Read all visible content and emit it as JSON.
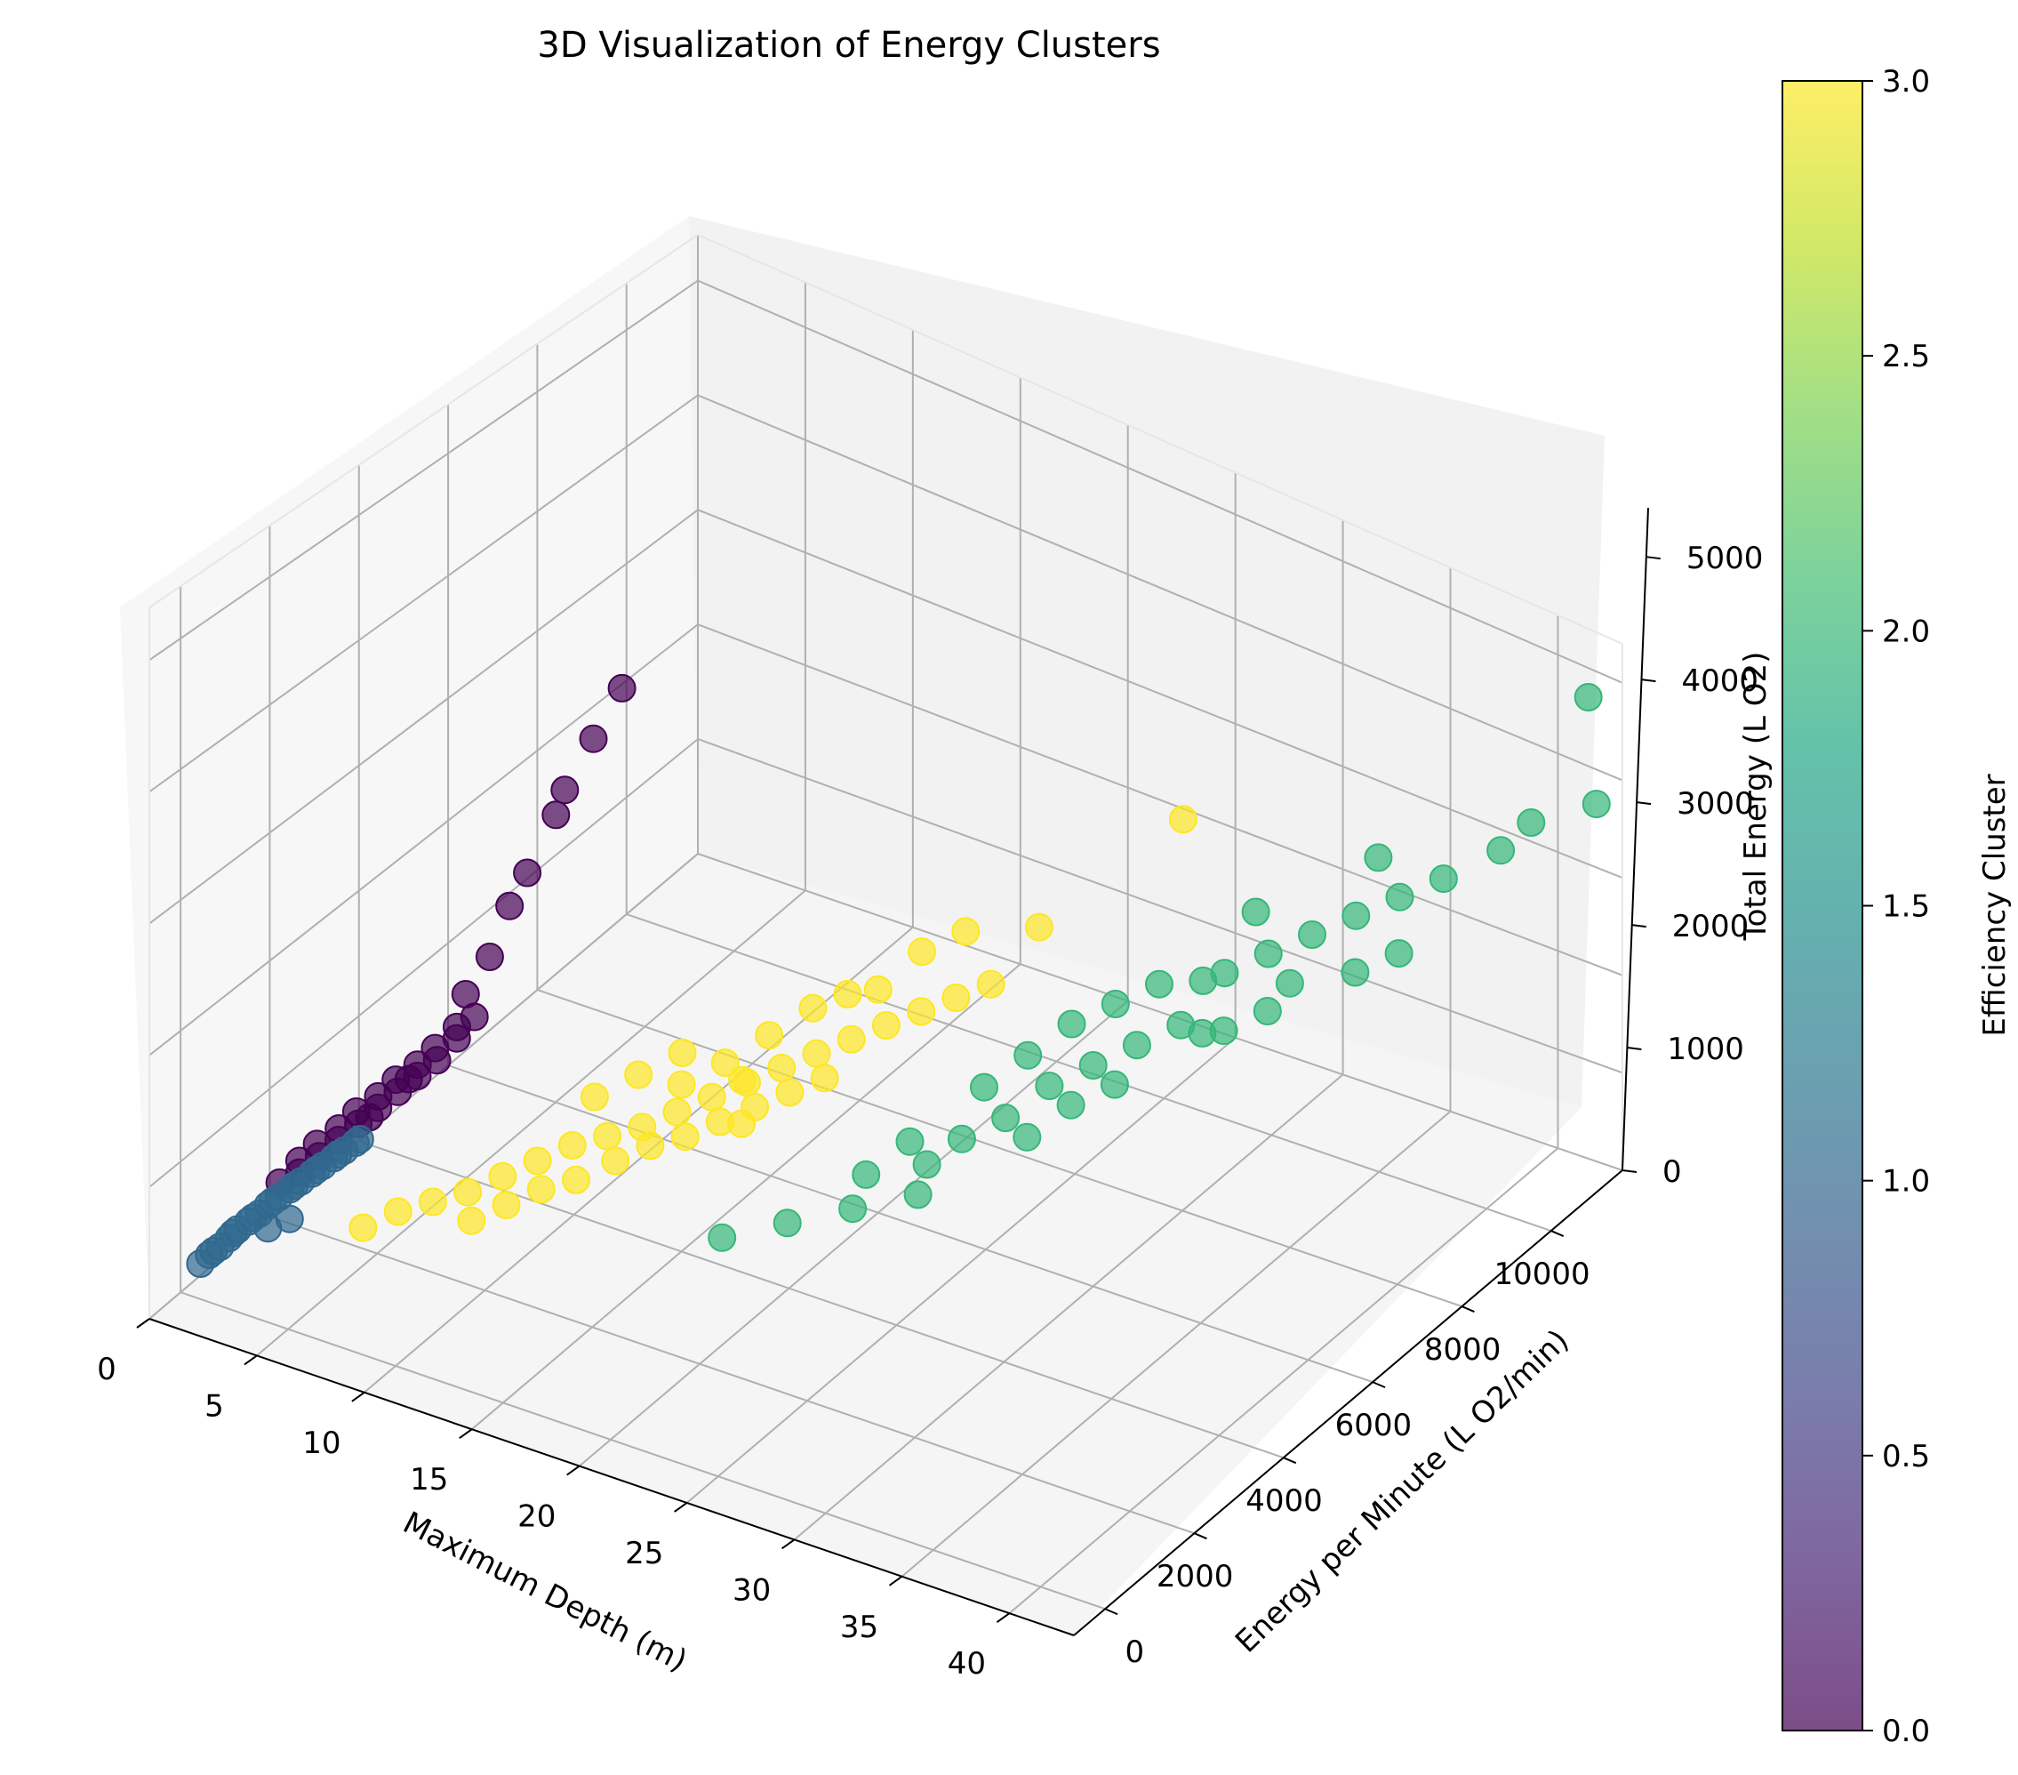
{
  "chart_data": {
    "type": "scatter",
    "title": "3D Visualization of Energy Clusters",
    "xlabel": "Maximum Depth (m)",
    "ylabel": "Energy per Minute (L O2/min)",
    "zlabel": "Total Energy (L O2)",
    "x_ticks": [
      "0",
      "5",
      "10",
      "15",
      "20",
      "25",
      "30",
      "35",
      "40"
    ],
    "y_ticks": [
      "0",
      "2000",
      "4000",
      "6000",
      "8000",
      "10000"
    ],
    "z_ticks": [
      "0",
      "1000",
      "2000",
      "3000",
      "4000",
      "5000"
    ],
    "xlim": [
      0,
      43
    ],
    "ylim": [
      -700,
      11600
    ],
    "zlim": [
      0,
      5400
    ],
    "grid": true,
    "colormap": "viridis",
    "colorbar": {
      "label": "Efficiency Cluster",
      "ticks": [
        "0.0",
        "0.5",
        "1.0",
        "1.5",
        "2.0",
        "2.5",
        "3.0"
      ],
      "range": [
        0,
        3
      ]
    },
    "clusters": [
      {
        "cluster": 0,
        "color": "#440154",
        "points": [
          [
            1.5,
            1500,
            500
          ],
          [
            2,
            1700,
            550
          ],
          [
            2.5,
            1900,
            650
          ],
          [
            3,
            2100,
            750
          ],
          [
            3.5,
            2300,
            850
          ],
          [
            4,
            2500,
            950
          ],
          [
            4.5,
            2700,
            1050
          ],
          [
            5,
            2900,
            1150
          ],
          [
            5.5,
            3100,
            1250
          ],
          [
            6,
            3300,
            1400
          ],
          [
            1.8,
            1800,
            600
          ],
          [
            2.8,
            2200,
            800
          ],
          [
            3.8,
            2600,
            1000
          ],
          [
            4.8,
            3000,
            1200
          ],
          [
            2.2,
            2000,
            700
          ],
          [
            3.2,
            2400,
            900
          ],
          [
            4.2,
            2800,
            1100
          ],
          [
            5.2,
            3200,
            1300
          ],
          [
            6,
            3500,
            1700
          ],
          [
            6.5,
            3800,
            1950
          ],
          [
            6.8,
            4100,
            2300
          ],
          [
            7,
            4400,
            2500
          ],
          [
            7.5,
            4800,
            2900
          ],
          [
            7.5,
            5000,
            3050
          ],
          [
            8,
            5400,
            3400
          ],
          [
            8.5,
            5800,
            3750
          ],
          [
            6.2,
            3600,
            1500
          ],
          [
            5.8,
            3400,
            1450
          ],
          [
            4.6,
            2900,
            1100
          ],
          [
            3.6,
            2500,
            850
          ]
        ]
      },
      {
        "cluster": 1,
        "color": "#31688e",
        "points": [
          [
            0.3,
            300,
            150
          ],
          [
            0.5,
            400,
            200
          ],
          [
            0.8,
            500,
            250
          ],
          [
            1,
            600,
            300
          ],
          [
            1.2,
            700,
            350
          ],
          [
            1.5,
            800,
            400
          ],
          [
            1.8,
            900,
            450
          ],
          [
            2,
            1000,
            500
          ],
          [
            2.3,
            1100,
            550
          ],
          [
            2.6,
            1200,
            600
          ],
          [
            2.9,
            1300,
            650
          ],
          [
            3.2,
            1400,
            700
          ],
          [
            3.5,
            1500,
            750
          ],
          [
            3.8,
            1600,
            800
          ],
          [
            4.1,
            1700,
            850
          ],
          [
            4.4,
            1800,
            900
          ],
          [
            0.6,
            450,
            220
          ],
          [
            1.1,
            650,
            330
          ],
          [
            1.6,
            850,
            420
          ],
          [
            2.1,
            1050,
            520
          ],
          [
            2.7,
            1250,
            620
          ],
          [
            3.3,
            1450,
            720
          ],
          [
            3.9,
            1650,
            820
          ],
          [
            4.5,
            1850,
            920
          ],
          [
            2.4,
            800,
            400
          ],
          [
            3,
            1000,
            450
          ]
        ]
      },
      {
        "cluster": 2,
        "color": "#35b779",
        "points": [
          [
            20,
            2500,
            900
          ],
          [
            22,
            3000,
            1000
          ],
          [
            24,
            3500,
            1100
          ],
          [
            26,
            4000,
            1200
          ],
          [
            26,
            4200,
            1400
          ],
          [
            27,
            4500,
            1600
          ],
          [
            28,
            5000,
            1700
          ],
          [
            29,
            5500,
            1900
          ],
          [
            30,
            6000,
            2000
          ],
          [
            31,
            6500,
            2100
          ],
          [
            32,
            7000,
            2200
          ],
          [
            30,
            6500,
            2400
          ],
          [
            31,
            7000,
            2500
          ],
          [
            33,
            7500,
            2600
          ],
          [
            34,
            8000,
            2700
          ],
          [
            35,
            8500,
            2800
          ],
          [
            36,
            9000,
            2900
          ],
          [
            37,
            9500,
            3000
          ],
          [
            38,
            10000,
            3100
          ],
          [
            39,
            10800,
            3200
          ],
          [
            33,
            8200,
            2950
          ],
          [
            32,
            7500,
            2450
          ],
          [
            29,
            6000,
            2300
          ],
          [
            28,
            5500,
            2100
          ],
          [
            27,
            5000,
            1900
          ],
          [
            25,
            4300,
            1500
          ],
          [
            36,
            9500,
            3300
          ],
          [
            35,
            8000,
            2500
          ],
          [
            34,
            7000,
            2300
          ],
          [
            38,
            9000,
            2700
          ],
          [
            40,
            11000,
            3500
          ],
          [
            42,
            11500,
            3700
          ],
          [
            41,
            11800,
            4600
          ],
          [
            31,
            6000,
            1900
          ],
          [
            30,
            5500,
            1800
          ],
          [
            33,
            7000,
            2200
          ],
          [
            37,
            8500,
            2600
          ],
          [
            35,
            7500,
            2400
          ],
          [
            29,
            5000,
            1600
          ],
          [
            24,
            3800,
            1300
          ]
        ]
      },
      {
        "cluster": 3,
        "color": "#fde725",
        "points": [
          [
            6,
            1200,
            500
          ],
          [
            7,
            1500,
            600
          ],
          [
            8,
            1800,
            650
          ],
          [
            9,
            2100,
            700
          ],
          [
            10,
            2400,
            800
          ],
          [
            11,
            2700,
            900
          ],
          [
            12,
            3000,
            1000
          ],
          [
            13,
            3300,
            1050
          ],
          [
            14,
            3600,
            1100
          ],
          [
            15,
            3900,
            1200
          ],
          [
            16,
            4200,
            1300
          ],
          [
            17,
            4500,
            1400
          ],
          [
            18,
            4800,
            1500
          ],
          [
            19,
            5100,
            1600
          ],
          [
            20,
            5400,
            1700
          ],
          [
            21,
            5700,
            1800
          ],
          [
            22,
            6000,
            1900
          ],
          [
            23,
            6300,
            2000
          ],
          [
            24,
            6600,
            2100
          ],
          [
            14,
            3000,
            1000
          ],
          [
            15,
            3300,
            1100
          ],
          [
            16,
            3600,
            1150
          ],
          [
            17,
            3900,
            1250
          ],
          [
            18,
            4200,
            1350
          ],
          [
            19,
            4500,
            1450
          ],
          [
            20,
            4800,
            1550
          ],
          [
            15,
            4000,
            1400
          ],
          [
            16,
            4500,
            1500
          ],
          [
            17,
            5000,
            1650
          ],
          [
            18,
            5500,
            1800
          ],
          [
            20,
            6000,
            1950
          ],
          [
            21,
            6500,
            2200
          ],
          [
            22,
            7000,
            2300
          ],
          [
            13,
            2600,
            900
          ],
          [
            12,
            2300,
            850
          ],
          [
            11,
            2000,
            750
          ],
          [
            10,
            1700,
            650
          ],
          [
            12,
            3500,
            1250
          ],
          [
            13,
            4000,
            1350
          ],
          [
            14,
            4500,
            1450
          ],
          [
            29,
            8500,
            3400
          ],
          [
            25,
            7200,
            2500
          ],
          [
            19,
            5800,
            1900
          ],
          [
            17,
            4400,
            1450
          ],
          [
            18,
            3900,
            1300
          ]
        ]
      }
    ]
  }
}
